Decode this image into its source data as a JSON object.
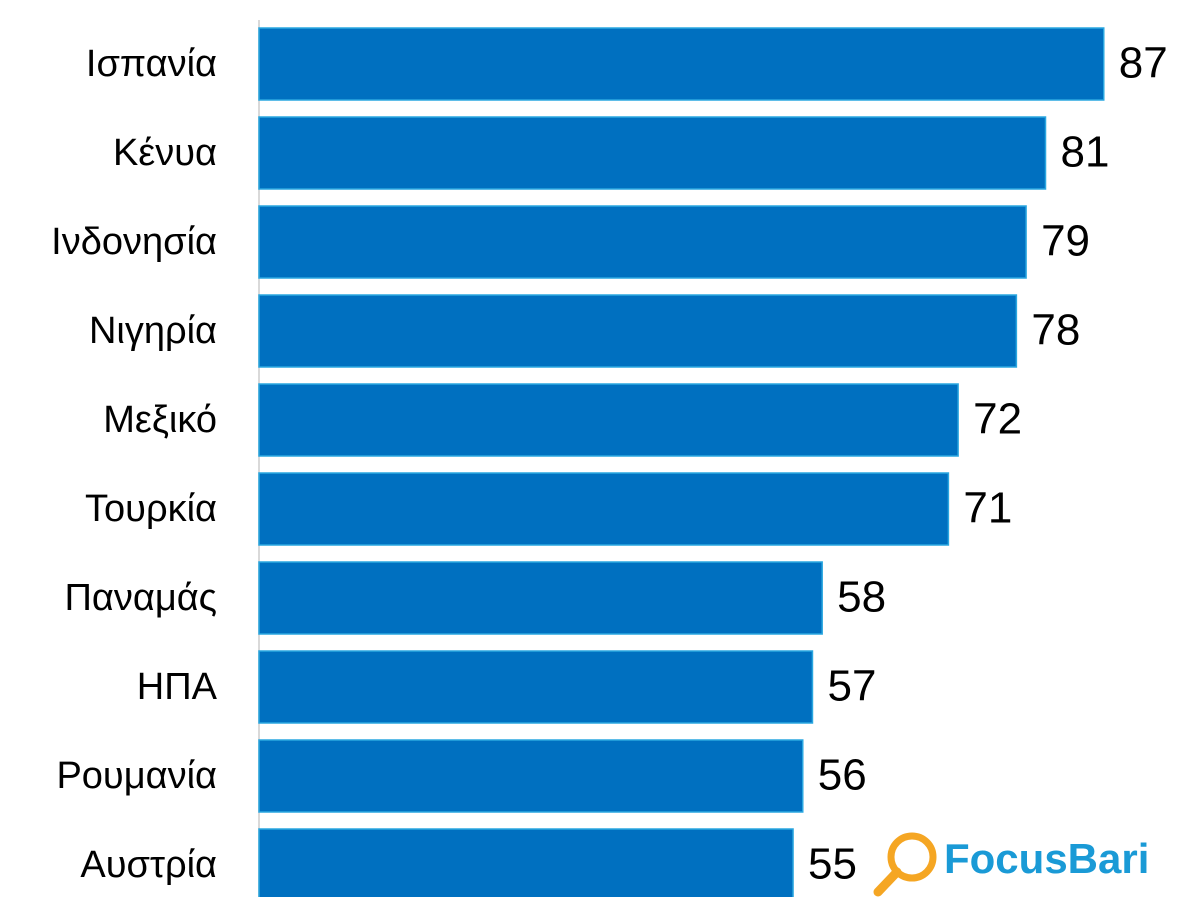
{
  "chart_data": {
    "type": "barh",
    "categories": [
      "Ισπανία",
      "Κένυα",
      "Ινδονησία",
      "Νιγηρία",
      "Μεξικό",
      "Τουρκία",
      "Παναμάς",
      "ΗΠΑ",
      "Ρουμανία",
      "Αυστρία"
    ],
    "values": [
      87,
      81,
      79,
      78,
      72,
      71,
      58,
      57,
      56,
      55
    ],
    "color": "#0070c0",
    "xlim": [
      0,
      100
    ],
    "logo": "FocusBari"
  }
}
